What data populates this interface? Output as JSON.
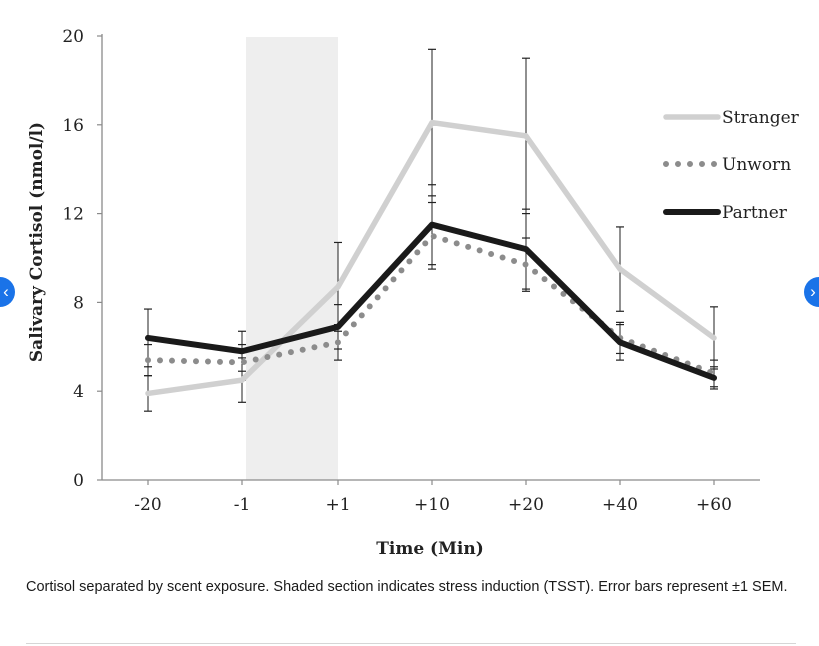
{
  "caption": "Cortisol separated by scent exposure. Shaded section indicates stress induction (TSST). Error bars represent ±1 SEM.",
  "nav": {
    "prev_icon": "chevron-left-icon",
    "next_icon": "chevron-right-icon",
    "accent": "#1a73e8"
  },
  "chart_data": {
    "type": "line",
    "title": "",
    "xlabel": "Time (Min)",
    "ylabel": "Salivary Cortisol (nmol/l)",
    "categories": [
      "-20",
      "-1",
      "+1",
      "+10",
      "+20",
      "+40",
      "+60"
    ],
    "ylim": [
      0,
      20
    ],
    "yticks": [
      0,
      4,
      8,
      12,
      16,
      20
    ],
    "grid": false,
    "legend_position": "right",
    "shaded_region": {
      "from": "-1",
      "to": "+1",
      "color": "#eeeeee"
    },
    "series": [
      {
        "name": "Stranger",
        "style": "solid",
        "color": "#d0d0d0",
        "values": [
          3.9,
          4.5,
          8.7,
          16.1,
          15.5,
          9.5,
          6.4
        ],
        "sem": [
          0.8,
          1.0,
          2.0,
          3.3,
          3.5,
          1.9,
          1.4
        ]
      },
      {
        "name": "Unworn",
        "style": "dotted",
        "color": "#8c8c8c",
        "values": [
          5.4,
          5.3,
          6.2,
          11.0,
          9.7,
          6.4,
          4.8
        ],
        "sem": [
          0.7,
          0.8,
          0.8,
          1.5,
          1.2,
          0.7,
          0.6
        ]
      },
      {
        "name": "Partner",
        "style": "solid",
        "color": "#1a1a1a",
        "values": [
          6.4,
          5.8,
          6.9,
          11.5,
          10.4,
          6.2,
          4.6
        ],
        "sem": [
          1.3,
          0.9,
          1.0,
          1.8,
          1.8,
          0.8,
          0.5
        ]
      }
    ]
  }
}
